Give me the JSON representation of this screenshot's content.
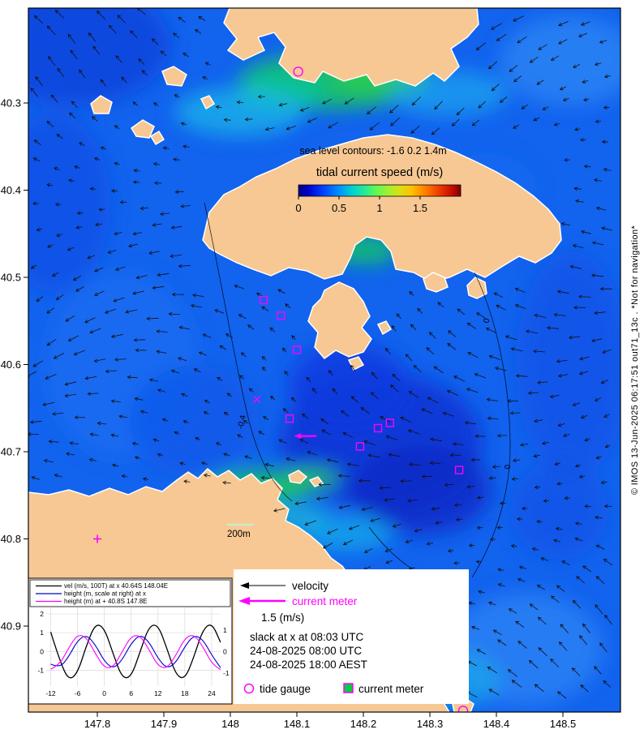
{
  "figure": {
    "copyright": "© IMOS 13-Jun-2025 06:17:51 out71_13c . *Not for navigation*"
  },
  "map": {
    "lat_ticks": [
      "-40.3",
      "-40.4",
      "-40.5",
      "-40.6",
      "-40.7",
      "-40.8",
      "-40.9"
    ],
    "lon_ticks": [
      "147.8",
      "147.9",
      "148",
      "148.1",
      "148.2",
      "148.3",
      "148.4",
      "148.5"
    ],
    "sea_level_note": "sea level contours: -1.6 0.2 1.4m",
    "colorbar_title": "tidal current speed (m/s)",
    "colorbar_ticks": [
      "0",
      "0.5",
      "1",
      "1.5"
    ],
    "contour_labels": [
      "-0.4",
      "0",
      "-0.1",
      "0"
    ],
    "scale_label": "200m",
    "markers": {
      "x_site": {
        "lat": -40.64,
        "lon": 148.04
      },
      "plus_site": {
        "lat": -40.8,
        "lon": 147.8
      },
      "current_meters": [
        {
          "lat": -40.526,
          "lon": 148.05
        },
        {
          "lat": -40.544,
          "lon": 148.076
        },
        {
          "lat": -40.583,
          "lon": 148.1
        },
        {
          "lat": -40.662,
          "lon": 148.089
        },
        {
          "lat": -40.673,
          "lon": 148.222
        },
        {
          "lat": -40.667,
          "lon": 148.24
        },
        {
          "lat": -40.694,
          "lon": 148.195
        },
        {
          "lat": -40.721,
          "lon": 148.344
        }
      ],
      "tide_gauges": [
        {
          "lat": -40.264,
          "lon": 148.102
        },
        {
          "lat": -40.997,
          "lon": 148.35
        }
      ],
      "meter_vector": {
        "lat": -40.682,
        "lon": 148.115
      }
    }
  },
  "legend": {
    "velocity": "velocity",
    "current_meter": "current meter",
    "speed_ref": "1.5 (m/s)",
    "slack": "slack at x at 08:03 UTC",
    "time_utc": "24-08-2025 08:00 UTC",
    "time_aest": "24-08-2025 18:00 AEST",
    "tide_gauge": "tide gauge",
    "current_meter_square": "current meter"
  },
  "chart_data": {
    "type": "line",
    "x_label_units": "hours relative to 0",
    "x": [
      -12,
      -10,
      -8,
      -6,
      -4,
      -2,
      0,
      2,
      4,
      6,
      8,
      10,
      12,
      14,
      16,
      18,
      20,
      22,
      24,
      26
    ],
    "series": [
      {
        "name": "vel (m/s, 100T) at x 40.64S 148.04E",
        "color": "#000000",
        "axis": "left",
        "values": [
          1.04,
          -0.48,
          -1.55,
          -1.16,
          0.32,
          1.5,
          1.26,
          -0.16,
          -1.43,
          -1.37,
          0.0,
          1.36,
          1.44,
          0.16,
          -1.27,
          -1.49,
          -0.32,
          1.16,
          1.55,
          0.48
        ]
      },
      {
        "name": "height (m, scale at right) at x",
        "color": "#0000cc",
        "axis": "right",
        "values": [
          -0.58,
          -0.77,
          -0.24,
          0.52,
          0.79,
          0.32,
          -0.46,
          -0.8,
          -0.39,
          0.39,
          0.8,
          0.46,
          -0.32,
          -0.79,
          -0.52,
          0.24,
          0.77,
          0.58,
          -0.16,
          -0.75
        ]
      },
      {
        "name": "height (m) at + 40.8S 147.8E",
        "color": "#ff00ff",
        "axis": "right",
        "values": [
          -0.82,
          -0.61,
          0.17,
          0.8,
          0.67,
          -0.09,
          -0.76,
          -0.73,
          0.0,
          0.72,
          0.76,
          0.09,
          -0.67,
          -0.79,
          -0.17,
          0.62,
          0.82,
          0.25,
          -0.55,
          -0.84
        ]
      }
    ],
    "x_ticks": [
      -12,
      -6,
      0,
      6,
      12,
      18,
      24
    ],
    "y_left_ticks": [
      2,
      1,
      0,
      -1
    ],
    "y_right_ticks": [
      1,
      0,
      -1
    ],
    "xlim": [
      -13,
      26
    ],
    "ylim_left": [
      -1.85,
      2.35
    ],
    "ylim_right": [
      -1.6,
      2.05
    ],
    "grid": true,
    "legend_position": "top-left-inset"
  }
}
